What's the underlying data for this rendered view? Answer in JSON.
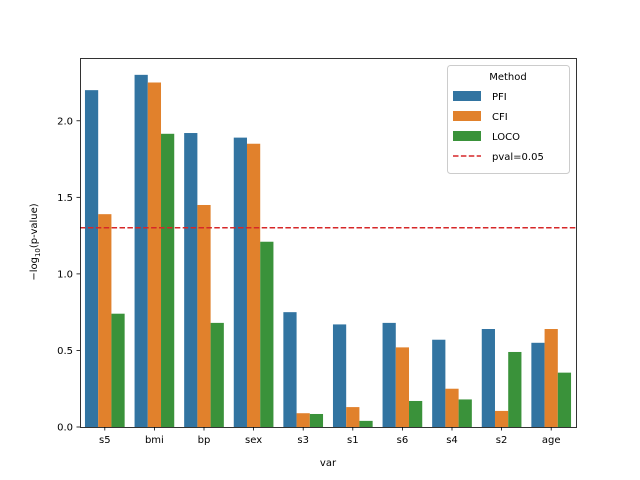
{
  "chart_data": {
    "type": "bar",
    "title": "",
    "xlabel": "var",
    "ylabel": {
      "prefix": "−log",
      "sub": "10",
      "suffix": "(p-value)"
    },
    "ylim": [
      0,
      2.41
    ],
    "yticks": [
      "0.0",
      "0.5",
      "1.0",
      "1.5",
      "2.0"
    ],
    "ytick_values": [
      0,
      0.5,
      1.0,
      1.5,
      2.0
    ],
    "grid": false,
    "categories": [
      "s5",
      "bmi",
      "bp",
      "sex",
      "s3",
      "s1",
      "s6",
      "s4",
      "s2",
      "age"
    ],
    "series": [
      {
        "name": "PFI",
        "color": "#3274a1",
        "values": [
          2.2,
          2.3,
          1.92,
          1.89,
          0.75,
          0.67,
          0.68,
          0.57,
          0.64,
          0.55
        ]
      },
      {
        "name": "CFI",
        "color": "#e1812c",
        "values": [
          1.39,
          2.25,
          1.45,
          1.85,
          0.09,
          0.13,
          0.52,
          0.25,
          0.105,
          0.64
        ]
      },
      {
        "name": "LOCO",
        "color": "#3a923a",
        "values": [
          0.74,
          1.915,
          0.68,
          1.21,
          0.085,
          0.04,
          0.17,
          0.18,
          0.49,
          0.355
        ]
      }
    ],
    "threshold": {
      "name": "pval=0.05",
      "value": 1.301,
      "color": "#d62728",
      "style": "dashed"
    },
    "legend": {
      "title": "Method",
      "placement": "top-right"
    }
  }
}
